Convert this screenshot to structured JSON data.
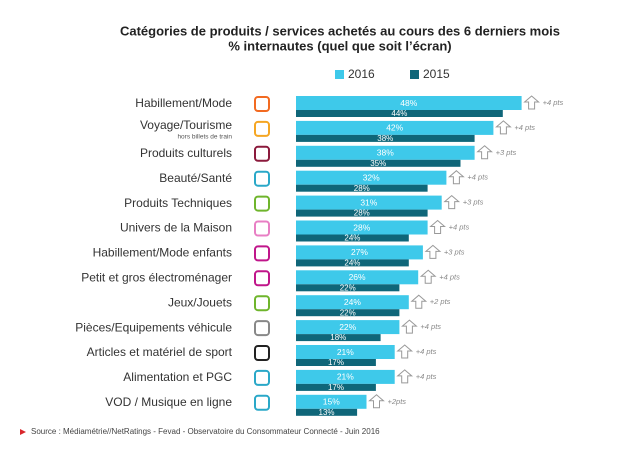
{
  "chart_data": {
    "type": "bar",
    "orientation": "horizontal",
    "title": "Catégories de produits / services achetés au cours des 6 derniers mois",
    "subtitle": "% internautes (quel que soit l’écran)",
    "categories": [
      "Habillement/Mode",
      "Voyage/Tourisme",
      "Produits culturels",
      "Beauté/Santé",
      "Produits Techniques",
      "Univers de la Maison",
      "Habillement/Mode enfants",
      "Petit et gros électroménager",
      "Jeux/Jouets",
      "Pièces/Equipements véhicule",
      "Articles et matériel de sport",
      "Alimentation et PGC",
      "VOD / Musique en ligne"
    ],
    "category_notes": [
      null,
      "hors billets de train",
      null,
      null,
      null,
      null,
      null,
      null,
      null,
      null,
      null,
      null,
      null
    ],
    "series": [
      {
        "name": "2016",
        "color": "#3ec9ea",
        "values": [
          48,
          42,
          38,
          32,
          31,
          28,
          27,
          26,
          24,
          22,
          21,
          21,
          15
        ],
        "value_labels": [
          "48%",
          "42%",
          "38%",
          "32%",
          "31%",
          "28%",
          "27%",
          "26%",
          "24%",
          "22%",
          "21%",
          "21%",
          "15%"
        ]
      },
      {
        "name": "2015",
        "color": "#0f6679",
        "values": [
          44,
          38,
          35,
          28,
          28,
          24,
          24,
          22,
          22,
          18,
          17,
          17,
          13
        ],
        "value_labels": [
          "44%",
          "38%",
          "35%",
          "28%",
          "28%",
          "24%",
          "24%",
          "22%",
          "22%",
          "18%",
          "17%",
          "17%",
          "13%"
        ]
      }
    ],
    "changes": [
      "+4 pts",
      "+4 pts",
      "+3 pts",
      "+4 pts",
      "+3 pts",
      "+4 pts",
      "+3 pts",
      "+4 pts",
      "+2 pts",
      "+4 pts",
      "+4 pts",
      "+4 pts",
      "+2pts"
    ],
    "source": "Source : Médiamétrie//NetRatings - Fevad - Observatoire du Consommateur Connecté - Juin 2016"
  }
}
